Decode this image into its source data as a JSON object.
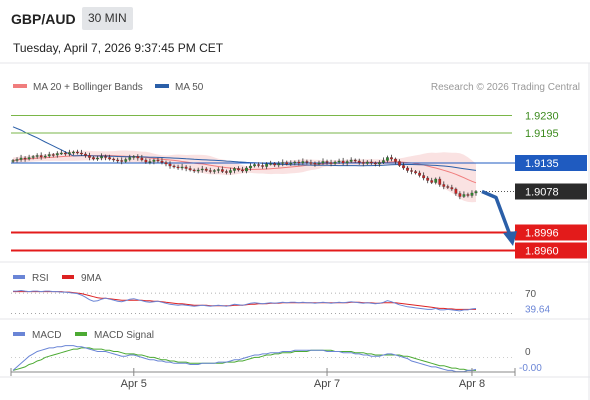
{
  "header": {
    "pair": "GBP/AUD",
    "interval": "30 MIN",
    "datetime": "Tuesday, April 7, 2026 9:37:45 PM CET"
  },
  "legend": {
    "ma20_label": "MA 20 + Bollinger Bands",
    "ma50_label": "MA 50",
    "copyright": "Research © 2026 Trading Central"
  },
  "colors": {
    "ma20": "#f07d7d",
    "ma50": "#2b5fa8",
    "candle_up": "#2e8b2e",
    "candle_down": "#cc2222",
    "resistance": "#7ab648",
    "pivot": "#1f5bc0",
    "support": "#e31b1b",
    "last_price": "#2b2b2b",
    "rsi": "#6a85d6",
    "rsi_ma": "#dd2222",
    "macd": "#6a85d6",
    "macd_signal": "#4caa33"
  },
  "chart_data": [
    {
      "type": "candlestick",
      "ylim": [
        1.8945,
        1.9265
      ],
      "current_price": 1.9078,
      "levels": [
        {
          "value": 1.923,
          "label": "1.9230",
          "role": "resistance"
        },
        {
          "value": 1.9195,
          "label": "1.9195",
          "role": "resistance"
        },
        {
          "value": 1.9135,
          "label": "1.9135",
          "role": "pivot"
        },
        {
          "value": 1.9078,
          "label": "1.9078",
          "role": "last"
        },
        {
          "value": 1.8996,
          "label": "1.8996",
          "role": "support"
        },
        {
          "value": 1.896,
          "label": "1.8960",
          "role": "support"
        }
      ],
      "x_ticks": [
        {
          "label": "Apr 5",
          "index": 30
        },
        {
          "label": "Apr 7",
          "index": 78
        },
        {
          "label": "Apr 8",
          "index": 114
        }
      ],
      "forecast_arrow": {
        "from": 1.9078,
        "to": 1.8975
      },
      "closes": [
        1.914,
        1.9142,
        1.9145,
        1.9143,
        1.9146,
        1.9148,
        1.915,
        1.9147,
        1.9149,
        1.9152,
        1.9151,
        1.9154,
        1.9155,
        1.9153,
        1.9156,
        1.9157,
        1.9155,
        1.9153,
        1.915,
        1.9146,
        1.9143,
        1.9145,
        1.9148,
        1.9146,
        1.9143,
        1.9141,
        1.914,
        1.9138,
        1.9142,
        1.9146,
        1.9148,
        1.9145,
        1.9141,
        1.9137,
        1.9138,
        1.9141,
        1.9139,
        1.9136,
        1.9133,
        1.9129,
        1.9127,
        1.9125,
        1.9127,
        1.9124,
        1.9121,
        1.9119,
        1.9121,
        1.9123,
        1.912,
        1.9118,
        1.912,
        1.9122,
        1.9118,
        1.9116,
        1.912,
        1.9124,
        1.9121,
        1.9119,
        1.9125,
        1.9129,
        1.9132,
        1.913,
        1.9128,
        1.9133,
        1.9134,
        1.9131,
        1.9134,
        1.9136,
        1.9133,
        1.9135,
        1.9137,
        1.9135,
        1.9138,
        1.9136,
        1.9135,
        1.9133,
        1.9135,
        1.9138,
        1.9136,
        1.9134,
        1.9137,
        1.9139,
        1.9135,
        1.9138,
        1.9141,
        1.9139,
        1.9136,
        1.9134,
        1.9137,
        1.9135,
        1.9133,
        1.9136,
        1.914,
        1.9146,
        1.9143,
        1.9138,
        1.913,
        1.9125,
        1.912,
        1.9118,
        1.9115,
        1.911,
        1.9105,
        1.91,
        1.9096,
        1.9103,
        1.9092,
        1.9088,
        1.9086,
        1.9083,
        1.9074,
        1.9068,
        1.9072,
        1.907,
        1.9075,
        1.9078
      ]
    },
    {
      "type": "line",
      "title": "RSI",
      "series": [
        {
          "name": "RSI"
        },
        {
          "name": "9MA"
        }
      ],
      "ylim": [
        25,
        80
      ],
      "levels": [
        70,
        30
      ],
      "last_label": "39.64",
      "level_label": "70",
      "rsi_values": [
        74,
        74,
        75,
        74,
        73,
        74,
        74,
        73,
        74,
        74,
        73,
        73,
        72,
        72,
        71,
        70,
        69,
        66,
        62,
        57,
        54,
        55,
        58,
        60,
        58,
        56,
        54,
        53,
        55,
        58,
        59,
        57,
        55,
        53,
        52,
        53,
        54,
        52,
        50,
        48,
        47,
        46,
        47,
        46,
        45,
        44,
        45,
        46,
        45,
        44,
        45,
        46,
        45,
        44,
        46,
        48,
        47,
        46,
        48,
        50,
        51,
        50,
        49,
        50,
        51,
        50,
        51,
        52,
        51,
        52,
        52,
        51,
        52,
        51,
        51,
        50,
        51,
        52,
        51,
        50,
        51,
        52,
        51,
        52,
        53,
        52,
        51,
        50,
        51,
        50,
        49,
        50,
        52,
        55,
        53,
        50,
        47,
        45,
        43,
        42,
        41,
        40,
        39,
        38,
        38,
        40,
        37,
        37,
        38,
        37,
        36,
        35,
        37,
        37,
        39,
        39.64
      ],
      "ma_values": [
        73,
        73,
        73,
        73,
        73,
        73,
        73,
        73,
        73,
        73,
        73,
        73,
        73,
        72,
        72,
        71,
        70,
        69,
        67,
        65,
        63,
        61,
        60,
        60,
        59,
        58,
        57,
        56,
        56,
        56,
        56,
        56,
        56,
        55,
        55,
        54,
        54,
        53,
        52,
        51,
        50,
        49,
        49,
        48,
        47,
        46,
        46,
        46,
        46,
        45,
        45,
        45,
        45,
        45,
        45,
        46,
        46,
        46,
        47,
        48,
        48,
        49,
        49,
        49,
        50,
        50,
        50,
        51,
        51,
        51,
        51,
        51,
        51,
        51,
        51,
        51,
        51,
        51,
        51,
        51,
        51,
        51,
        51,
        51,
        52,
        52,
        52,
        51,
        51,
        51,
        50,
        50,
        51,
        51,
        51,
        51,
        50,
        49,
        48,
        47,
        46,
        45,
        44,
        43,
        42,
        41,
        40,
        40,
        39,
        39,
        38,
        38,
        38,
        38,
        38,
        38
      ]
    },
    {
      "type": "line",
      "title": "MACD",
      "series": [
        {
          "name": "MACD"
        },
        {
          "name": "MACD Signal"
        }
      ],
      "ylim": [
        -0.0013,
        0.0014
      ],
      "zero_label": "0",
      "last_label": "-0.00",
      "macd_values": [
        -0.001,
        -0.0007,
        -0.0004,
        -0.0001,
        0.0002,
        0.0004,
        0.0006,
        0.0007,
        0.0008,
        0.0009,
        0.0009,
        0.001,
        0.001,
        0.0011,
        0.0011,
        0.0011,
        0.001,
        0.001,
        0.0009,
        0.0008,
        0.0007,
        0.0006,
        0.0006,
        0.0006,
        0.0005,
        0.0004,
        0.0003,
        0.0002,
        0.0002,
        0.0003,
        0.0003,
        0.0002,
        0.0001,
        0.0,
        -0.0001,
        -0.0001,
        -0.0002,
        -0.0002,
        -0.0003,
        -0.0003,
        -0.0004,
        -0.0004,
        -0.0004,
        -0.0004,
        -0.0005,
        -0.0005,
        -0.0005,
        -0.0004,
        -0.0004,
        -0.0004,
        -0.0004,
        -0.0003,
        -0.0003,
        -0.0003,
        -0.0002,
        -0.0001,
        -0.0001,
        0.0,
        0.0001,
        0.0002,
        0.0003,
        0.0003,
        0.0004,
        0.0004,
        0.0005,
        0.0005,
        0.0005,
        0.0006,
        0.0006,
        0.0006,
        0.0007,
        0.0007,
        0.0007,
        0.0007,
        0.0007,
        0.0007,
        0.0007,
        0.0007,
        0.0006,
        0.0006,
        0.0006,
        0.0006,
        0.0005,
        0.0005,
        0.0005,
        0.0004,
        0.0004,
        0.0003,
        0.0003,
        0.0002,
        0.0002,
        0.0002,
        0.0003,
        0.0004,
        0.0004,
        0.0003,
        0.0002,
        0.0001,
        0.0,
        -0.0002,
        -0.0003,
        -0.0004,
        -0.0005,
        -0.0006,
        -0.0007,
        -0.0007,
        -0.0008,
        -0.0009,
        -0.001,
        -0.001,
        -0.0011,
        -0.0011,
        -0.0011,
        -0.001,
        -0.001,
        -0.0009
      ],
      "signal_values": [
        -0.001,
        -0.0009,
        -0.0008,
        -0.0007,
        -0.0005,
        -0.0004,
        -0.0002,
        -0.0001,
        0.0001,
        0.0002,
        0.0003,
        0.0004,
        0.0005,
        0.0006,
        0.0007,
        0.0008,
        0.0008,
        0.0009,
        0.0009,
        0.0009,
        0.0008,
        0.0008,
        0.0008,
        0.0007,
        0.0007,
        0.0006,
        0.0006,
        0.0005,
        0.0004,
        0.0004,
        0.0004,
        0.0003,
        0.0003,
        0.0002,
        0.0001,
        0.0001,
        0.0,
        -0.0001,
        -0.0001,
        -0.0002,
        -0.0002,
        -0.0003,
        -0.0003,
        -0.0003,
        -0.0004,
        -0.0004,
        -0.0004,
        -0.0004,
        -0.0004,
        -0.0004,
        -0.0004,
        -0.0004,
        -0.0004,
        -0.0003,
        -0.0003,
        -0.0003,
        -0.0002,
        -0.0002,
        -0.0001,
        0.0,
        0.0001,
        0.0001,
        0.0002,
        0.0003,
        0.0003,
        0.0004,
        0.0004,
        0.0005,
        0.0005,
        0.0005,
        0.0006,
        0.0006,
        0.0006,
        0.0006,
        0.0007,
        0.0007,
        0.0007,
        0.0007,
        0.0007,
        0.0007,
        0.0006,
        0.0006,
        0.0006,
        0.0006,
        0.0006,
        0.0005,
        0.0005,
        0.0005,
        0.0004,
        0.0004,
        0.0003,
        0.0003,
        0.0003,
        0.0003,
        0.0003,
        0.0003,
        0.0003,
        0.0002,
        0.0002,
        0.0001,
        0.0,
        -0.0001,
        -0.0002,
        -0.0003,
        -0.0004,
        -0.0005,
        -0.0006,
        -0.0006,
        -0.0007,
        -0.0008,
        -0.0008,
        -0.0009,
        -0.0009,
        -0.001,
        -0.001,
        -0.001
      ]
    }
  ]
}
